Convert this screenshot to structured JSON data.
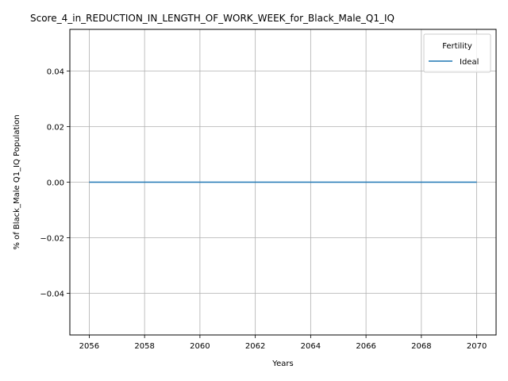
{
  "chart_data": {
    "type": "line",
    "title": "Score_4_in_REDUCTION_IN_LENGTH_OF_WORK_WEEK_for_Black_Male_Q1_IQ",
    "xlabel": "Years",
    "ylabel": "% of Black_Male Q1_IQ Population",
    "x": [
      2056,
      2057,
      2058,
      2059,
      2060,
      2061,
      2062,
      2063,
      2064,
      2065,
      2066,
      2067,
      2068,
      2069,
      2070
    ],
    "xlim": [
      2055.3,
      2070.7
    ],
    "ylim": [
      -0.055,
      0.055
    ],
    "xticks": [
      2056,
      2058,
      2060,
      2062,
      2064,
      2066,
      2068,
      2070
    ],
    "xtick_labels": [
      "2056",
      "2058",
      "2060",
      "2062",
      "2064",
      "2066",
      "2068",
      "2070"
    ],
    "yticks": [
      -0.04,
      -0.02,
      0.0,
      0.02,
      0.04
    ],
    "ytick_labels": [
      "−0.04",
      "−0.02",
      "0.00",
      "0.02",
      "0.04"
    ],
    "grid": true,
    "legend": {
      "title": "Fertility",
      "placement": "top-right"
    },
    "series": [
      {
        "name": "Ideal",
        "color": "#1f77b4",
        "values": [
          0,
          0,
          0,
          0,
          0,
          0,
          0,
          0,
          0,
          0,
          0,
          0,
          0,
          0,
          0
        ]
      }
    ]
  }
}
